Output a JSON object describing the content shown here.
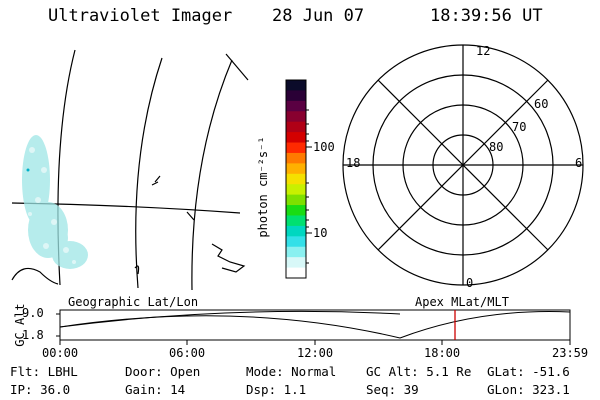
{
  "header": {
    "instrument": "Ultraviolet Imager",
    "date": "28 Jun 07",
    "time": "18:39:56 UT"
  },
  "colorbar": {
    "unit_label": "photon cm⁻²s⁻¹",
    "ticks": [
      "100",
      "10"
    ],
    "colors": [
      "#0b0b2a",
      "#2a0036",
      "#5a0042",
      "#88002f",
      "#b00016",
      "#d40000",
      "#ff2a00",
      "#ff7a00",
      "#ffb000",
      "#f5e000",
      "#c8f000",
      "#7ee000",
      "#19dc14",
      "#00e070",
      "#00d7c0",
      "#33e0e8",
      "#8af0f0",
      "#d8f8f8",
      "#ffffff"
    ]
  },
  "polar_plot": {
    "mlt_labels": {
      "top": "12",
      "left": "18",
      "right": "6",
      "bottom": "0"
    },
    "lat_labels": [
      "60",
      "70",
      "80"
    ]
  },
  "timeline": {
    "left_title": "Geographic Lat/Lon",
    "right_title": "Apex MLat/MLT",
    "y_axis_label": "GC Alt",
    "y_ticks": [
      "9.0",
      "1.8"
    ],
    "x_ticks": [
      "00:00",
      "06:00",
      "12:00",
      "18:00",
      "23:59"
    ],
    "marker_color": "#cc0000"
  },
  "status": {
    "filter": "Flt: LBHL",
    "ip": "IP: 36.0",
    "door": "Door: Open",
    "gain": "Gain: 14",
    "mode": "Mode: Normal",
    "dsp": "Dsp:    1.1",
    "gc_alt": "GC Alt: 5.1 Re",
    "seq": "Seq: 39",
    "glat": "GLat: -51.6",
    "glon": "GLon: 323.1"
  }
}
